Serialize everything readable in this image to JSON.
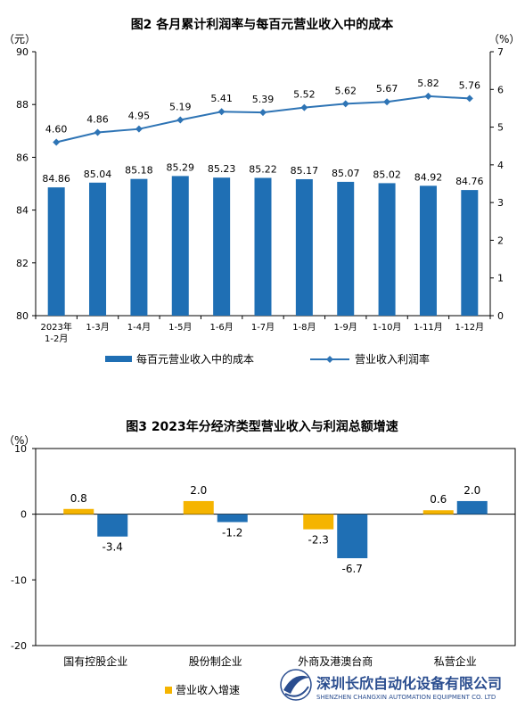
{
  "chart_data": [
    {
      "type": "bar",
      "title": "图2  各月累计利润率与每百元营业收入中的成本",
      "categories": [
        "2023年\n1-2月",
        "1-3月",
        "1-4月",
        "1-5月",
        "1-6月",
        "1-7月",
        "1-8月",
        "1-9月",
        "1-10月",
        "1-11月",
        "1-12月"
      ],
      "y_left_unit": "（元）",
      "y_right_unit": "（%）",
      "ylim": [
        80,
        90
      ],
      "ylim_right": [
        0,
        7
      ],
      "yticks": [
        80,
        82,
        84,
        86,
        88,
        90
      ],
      "yticks_right": [
        0,
        1,
        2,
        3,
        4,
        5,
        6,
        7
      ],
      "series": [
        {
          "name": "每百元营业收入中的成本",
          "type": "bar",
          "axis": "left",
          "color": "#1f6fb4",
          "values": [
            84.86,
            85.04,
            85.18,
            85.29,
            85.23,
            85.22,
            85.17,
            85.07,
            85.02,
            84.92,
            84.76
          ],
          "labels": [
            "84.86",
            "85.04",
            "85.18",
            "85.29",
            "85.23",
            "85.22",
            "85.17",
            "85.07",
            "85.02",
            "84.92",
            "84.76"
          ]
        },
        {
          "name": "营业收入利润率",
          "type": "line",
          "axis": "right",
          "color": "#2e74b5",
          "values": [
            4.6,
            4.86,
            4.95,
            5.19,
            5.41,
            5.39,
            5.52,
            5.62,
            5.67,
            5.82,
            5.76
          ],
          "labels": [
            "4.60",
            "4.86",
            "4.95",
            "5.19",
            "5.41",
            "5.39",
            "5.52",
            "5.62",
            "5.67",
            "5.82",
            "5.76"
          ]
        }
      ],
      "legend_position": "bottom",
      "grid": false
    },
    {
      "type": "bar",
      "title": "图3  2023年分经济类型营业收入与利润总额增速",
      "y_unit": "（%）",
      "categories": [
        "国有控股企业",
        "股份制企业",
        "外商及港澳台商",
        "私营企业"
      ],
      "ylim": [
        -20,
        10
      ],
      "yticks": [
        10,
        0,
        -10,
        -20
      ],
      "series": [
        {
          "name": "营业收入增速",
          "color": "#f5b400",
          "values": [
            0.8,
            2.0,
            -2.3,
            0.6
          ],
          "labels": [
            "0.8",
            "2.0",
            "-2.3",
            "0.6"
          ]
        },
        {
          "name": "",
          "color": "#1f6fb4",
          "values": [
            -3.4,
            -1.2,
            -6.7,
            2.0
          ],
          "labels": [
            "-3.4",
            "-1.2",
            "-6.7",
            "2.0"
          ]
        }
      ],
      "legend_position": "bottom-left",
      "grid": false
    }
  ],
  "watermark": {
    "company_cn": "深圳长欣自动化设备有限公司",
    "company_en": "SHENZHEN CHANGXIN AUTOMATION EQUIPMENT CO. LTD"
  }
}
